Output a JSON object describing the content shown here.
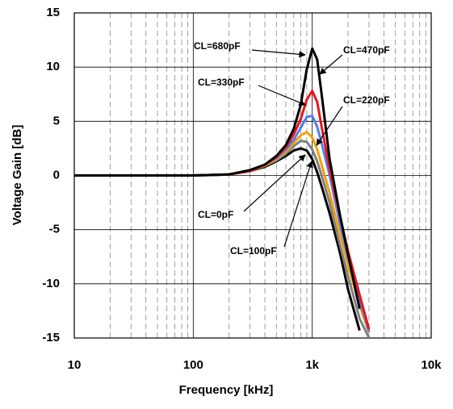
{
  "chart_data": {
    "type": "line",
    "x_label": "Frequency [kHz]",
    "y_label": "Voltage Gain [dB]",
    "log_x": true,
    "grid": true,
    "x": [
      10,
      20,
      50,
      100,
      200,
      300,
      400,
      500,
      600,
      700,
      800,
      900,
      1000,
      1100,
      1200,
      1400,
      1700,
      2000,
      2500,
      3000,
      3500
    ],
    "xlim": [
      10,
      10000
    ],
    "xticks": [
      10,
      100,
      {
        "value": 1000,
        "label": "1k"
      },
      {
        "value": 10000,
        "label": "10k"
      }
    ],
    "ylim": [
      -15,
      15
    ],
    "yticks": [
      -15,
      -10,
      -5,
      0,
      5,
      10,
      15
    ],
    "series": [
      {
        "name": "CL=0pF",
        "color": "#000000",
        "values": [
          0,
          0,
          0,
          0,
          0.1,
          0.4,
          0.8,
          1.3,
          1.8,
          2.3,
          2.5,
          2.3,
          1.5,
          0.3,
          -1,
          -3.5,
          -7,
          -10.5,
          -14.3,
          null,
          null
        ]
      },
      {
        "name": "CL=100pF",
        "color": "#808080",
        "values": [
          0,
          0,
          0,
          0,
          0.1,
          0.4,
          0.9,
          1.4,
          2.0,
          2.7,
          3.2,
          3.1,
          2.4,
          1.3,
          0,
          -2.5,
          -6.3,
          -9.3,
          -13.2,
          -15,
          null
        ]
      },
      {
        "name": "CL=220pF",
        "color": "#f5a00a",
        "values": [
          0,
          0,
          0,
          0,
          0.1,
          0.4,
          0.9,
          1.5,
          2.2,
          3.0,
          3.7,
          4.0,
          3.5,
          2.4,
          1.0,
          -1.6,
          -5.3,
          -8.3,
          -12.0,
          -14.5,
          null
        ]
      },
      {
        "name": "CL=330pF",
        "color": "#4f7fef",
        "values": [
          0,
          0,
          0,
          0,
          0.1,
          0.4,
          1.0,
          1.6,
          2.4,
          3.3,
          4.4,
          5.4,
          5.5,
          4.5,
          3.0,
          0.0,
          -4.3,
          -7.6,
          -11.5,
          -14.4,
          null
        ]
      },
      {
        "name": "CL=470pF",
        "color": "#e8161b",
        "values": [
          0,
          0,
          0,
          0,
          0.1,
          0.4,
          1.0,
          1.7,
          2.6,
          3.8,
          5.2,
          7.0,
          7.8,
          6.8,
          4.5,
          0.6,
          -3.6,
          -7.0,
          -11.0,
          -14.2,
          null
        ]
      },
      {
        "name": "CL=680pF",
        "color": "#000000",
        "values": [
          0,
          0,
          0,
          0,
          0.1,
          0.5,
          1.0,
          1.8,
          2.8,
          4.3,
          6.5,
          9.8,
          11.7,
          10.7,
          7.5,
          1.5,
          -3.5,
          -7.3,
          -12.3,
          null,
          null
        ]
      }
    ]
  }
}
